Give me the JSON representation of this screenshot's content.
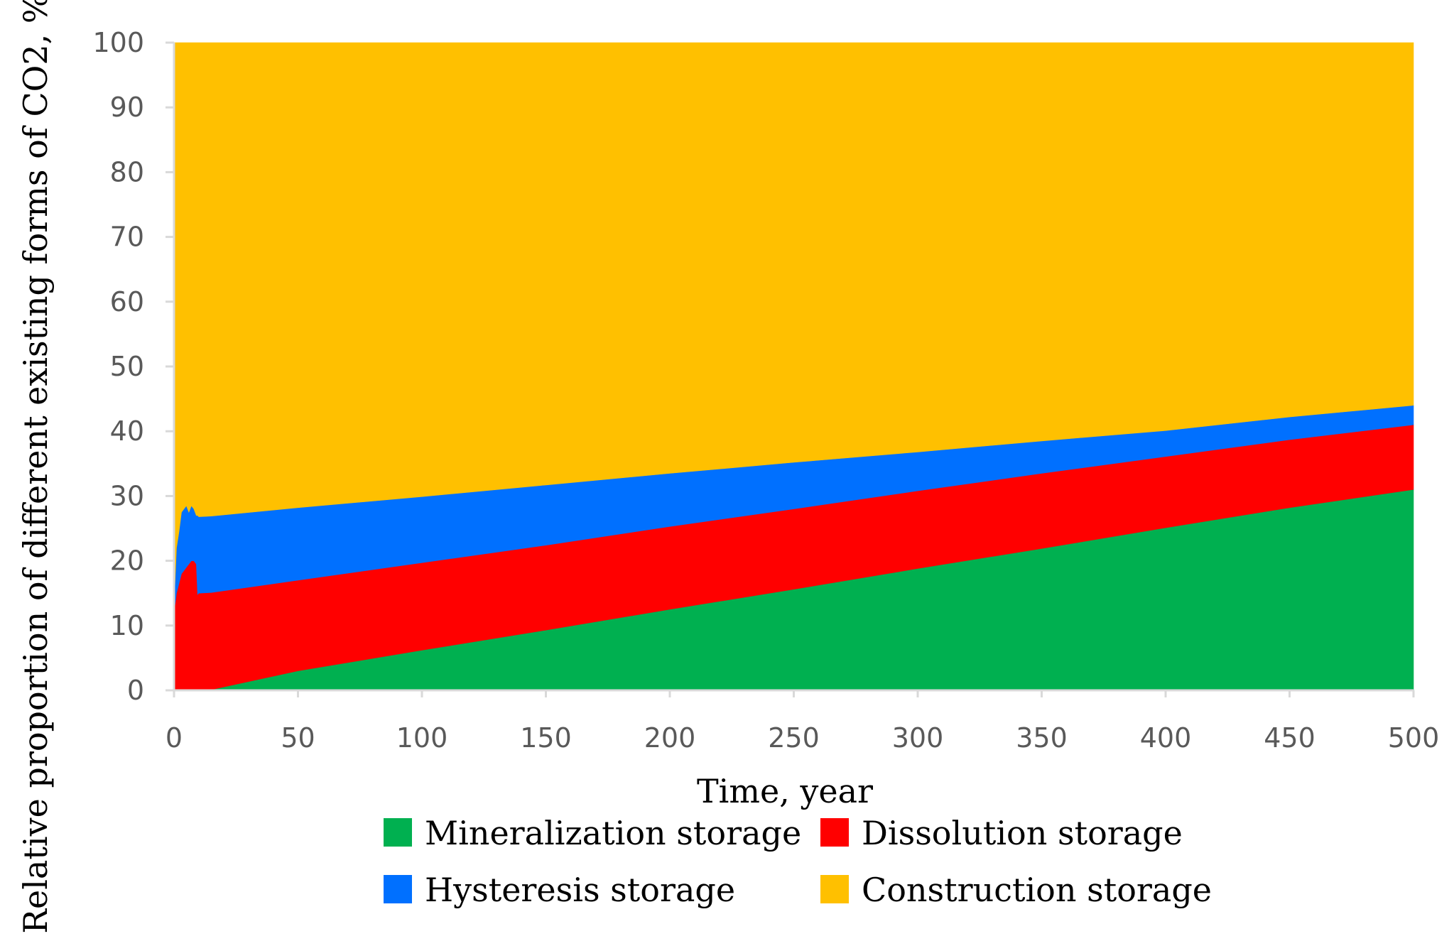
{
  "chart_data": {
    "type": "area",
    "stacked": true,
    "title": "",
    "xlabel": "Time,  year",
    "ylabel": "Relative proportion of different existing forms of CO2, %",
    "xlim": [
      0,
      500
    ],
    "ylim": [
      0,
      100
    ],
    "x_ticks": [
      0,
      50,
      100,
      150,
      200,
      250,
      300,
      350,
      400,
      450,
      500
    ],
    "y_ticks": [
      0,
      10,
      20,
      30,
      40,
      50,
      60,
      70,
      80,
      90,
      100
    ],
    "grid": false,
    "legend_position": "bottom",
    "x": [
      0,
      1,
      2,
      3,
      4,
      5,
      6,
      7,
      8,
      9,
      9.5,
      10,
      15,
      50,
      100,
      150,
      200,
      250,
      300,
      350,
      400,
      450,
      500
    ],
    "series": [
      {
        "name": "Mineralization storage",
        "color": "#00B050",
        "values": [
          0,
          0,
          0,
          0,
          0,
          0,
          0,
          0,
          0,
          0,
          0,
          0,
          0.1,
          3,
          6.2,
          9.3,
          12.5,
          15.6,
          18.8,
          21.9,
          25.1,
          28.2,
          31
        ]
      },
      {
        "name": "Dissolution storage",
        "color": "#FF0000",
        "values": [
          12,
          15,
          16.5,
          18,
          18.5,
          19,
          19.5,
          20,
          20,
          19.5,
          14.8,
          15,
          15,
          14,
          13.5,
          13.1,
          12.8,
          12.4,
          12,
          11.6,
          11,
          10.5,
          10
        ]
      },
      {
        "name": "Hysteresis storage",
        "color": "#0070FF",
        "values": [
          1,
          7,
          8,
          9.5,
          9.5,
          9.5,
          8,
          8.5,
          8,
          7.5,
          12.2,
          11.8,
          11.8,
          11.2,
          10.2,
          9.3,
          8.2,
          7.2,
          6,
          5,
          4,
          3.5,
          3
        ]
      },
      {
        "name": "Construction storage",
        "color": "#FFC000",
        "values": [
          87,
          78,
          75.5,
          72.5,
          72,
          71.5,
          72.5,
          71.5,
          72,
          73,
          73,
          73.2,
          73.1,
          71.8,
          70.1,
          68.3,
          66.5,
          64.8,
          63.2,
          61.5,
          59.9,
          57.8,
          56
        ]
      }
    ]
  }
}
